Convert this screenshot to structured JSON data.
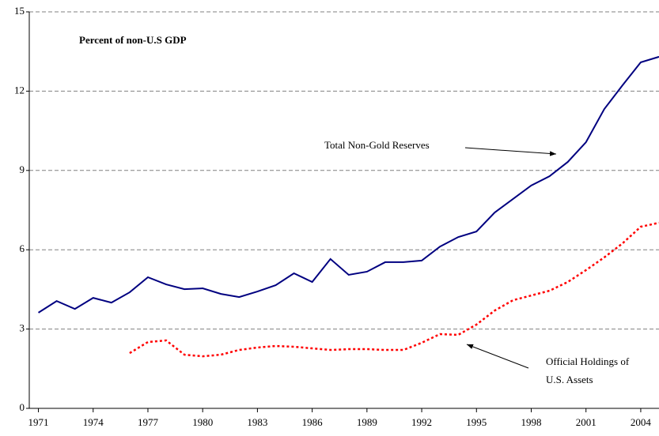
{
  "chart_data": {
    "type": "line",
    "annotation_unit": "Percent of non-U.S GDP",
    "annotations": [
      "Total Non-Gold Reserves",
      [
        "Official Holdings of",
        "U.S. Assets"
      ]
    ],
    "x": [
      1971,
      1972,
      1973,
      1974,
      1975,
      1976,
      1977,
      1978,
      1979,
      1980,
      1981,
      1982,
      1983,
      1984,
      1985,
      1986,
      1987,
      1988,
      1989,
      1990,
      1991,
      1992,
      1993,
      1994,
      1995,
      1996,
      1997,
      1998,
      1999,
      2000,
      2001,
      2002,
      2003,
      2004,
      2005
    ],
    "series": [
      {
        "name": "Total Non-Gold Reserves",
        "color": "#000080",
        "dash": false,
        "values": [
          3.62,
          4.06,
          3.76,
          4.18,
          4.0,
          4.39,
          4.96,
          4.69,
          4.51,
          4.54,
          4.33,
          4.21,
          4.42,
          4.66,
          5.11,
          4.78,
          5.65,
          5.05,
          5.17,
          5.53,
          5.53,
          5.59,
          6.12,
          6.48,
          6.69,
          7.41,
          7.92,
          8.43,
          8.78,
          9.32,
          10.07,
          11.32,
          12.22,
          13.09,
          13.3
        ]
      },
      {
        "name": "Official Holdings of U.S. Assets",
        "color": "#ff0000",
        "dash": true,
        "values": [
          null,
          null,
          null,
          null,
          null,
          2.09,
          2.51,
          2.57,
          2.03,
          1.97,
          2.03,
          2.21,
          2.3,
          2.36,
          2.33,
          2.27,
          2.21,
          2.24,
          2.24,
          2.21,
          2.21,
          2.48,
          2.81,
          2.78,
          3.17,
          3.7,
          4.09,
          4.27,
          4.45,
          4.78,
          5.23,
          5.71,
          6.24,
          6.87,
          7.02
        ]
      }
    ],
    "xlim": [
      1970.5,
      2005
    ],
    "xticks": [
      1971,
      1974,
      1977,
      1980,
      1983,
      1986,
      1989,
      1992,
      1995,
      1998,
      2001,
      2004
    ],
    "ylim": [
      0,
      15
    ],
    "yticks": [
      0,
      3,
      6,
      9,
      12,
      15
    ],
    "grid": true
  }
}
